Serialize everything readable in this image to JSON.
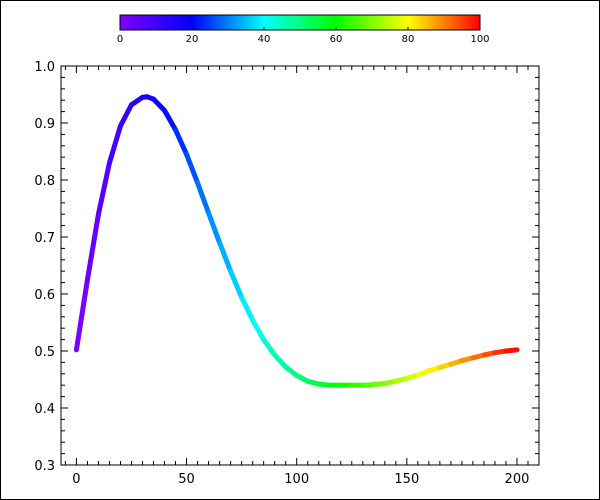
{
  "chart_data": {
    "type": "line",
    "title": "",
    "xlabel": "",
    "ylabel": "",
    "xlim": [
      -7,
      210
    ],
    "ylim": [
      0.3,
      1.0
    ],
    "x_ticks": [
      0,
      50,
      100,
      150,
      200
    ],
    "y_ticks": [
      0.3,
      0.4,
      0.5,
      0.6,
      0.7,
      0.8,
      0.9,
      1.0
    ],
    "x_tick_labels": [
      "0",
      "50",
      "100",
      "150",
      "200"
    ],
    "y_tick_labels": [
      "0.3",
      "0.4",
      "0.5",
      "0.6",
      "0.7",
      "0.8",
      "0.9",
      "1.0"
    ],
    "grid": false,
    "series": [
      {
        "color_by": "x",
        "x": [
          0,
          5,
          10,
          15,
          20,
          25,
          30,
          32,
          35,
          40,
          45,
          50,
          55,
          60,
          65,
          70,
          75,
          80,
          85,
          90,
          95,
          100,
          105,
          110,
          115,
          120,
          125,
          130,
          132,
          135,
          140,
          145,
          150,
          155,
          160,
          165,
          170,
          175,
          180,
          185,
          190,
          195,
          200
        ],
        "y": [
          0.502,
          0.625,
          0.74,
          0.83,
          0.895,
          0.932,
          0.945,
          0.946,
          0.942,
          0.922,
          0.888,
          0.845,
          0.795,
          0.742,
          0.69,
          0.64,
          0.594,
          0.554,
          0.52,
          0.493,
          0.472,
          0.457,
          0.447,
          0.442,
          0.44,
          0.44,
          0.44,
          0.44,
          0.44,
          0.441,
          0.443,
          0.447,
          0.452,
          0.458,
          0.465,
          0.471,
          0.477,
          0.483,
          0.488,
          0.493,
          0.497,
          0.5,
          0.502
        ]
      }
    ],
    "colorbar": {
      "position": "top",
      "range": [
        0,
        100
      ],
      "ticks": [
        0,
        20,
        40,
        60,
        80,
        100
      ],
      "tick_labels": [
        "0",
        "20",
        "40",
        "60",
        "80",
        "100"
      ],
      "colormap": "rainbow",
      "colors": [
        "#7f00ff",
        "#0000ff",
        "#00ffff",
        "#00ff00",
        "#ffff00",
        "#ff0000"
      ]
    }
  }
}
